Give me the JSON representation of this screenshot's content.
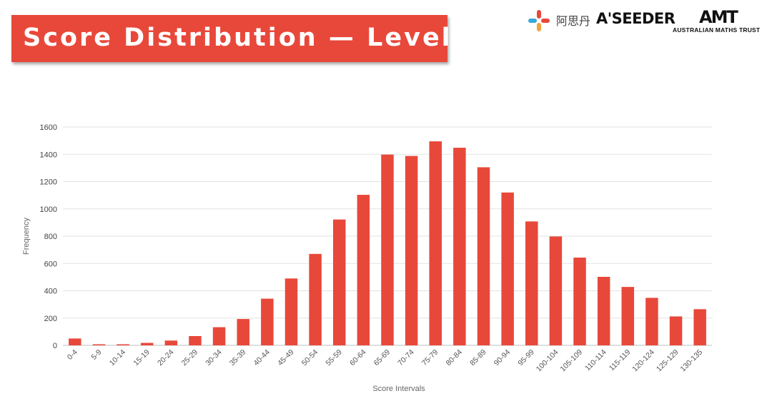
{
  "header": {
    "title": "Score Distribution — Level A",
    "title_bg_color": "#e8483a"
  },
  "logos": {
    "aseeder_cn": "阿思丹",
    "aseeder_en": "A'SEEDER",
    "amt_mark": "AMT",
    "amt_name": "AUSTRALIAN MATHS TRUST"
  },
  "chart_data": {
    "type": "bar",
    "title": "",
    "xlabel": "Score Intervals",
    "ylabel": "Frequency",
    "ylim": [
      0,
      1600
    ],
    "yticks": [
      0,
      200,
      400,
      600,
      800,
      1000,
      1200,
      1400,
      1600
    ],
    "grid": true,
    "bar_color": "#e8483a",
    "categories": [
      "0-4",
      "5-9",
      "10-14",
      "15-19",
      "20-24",
      "25-29",
      "30-34",
      "35-39",
      "40-44",
      "45-49",
      "50-54",
      "55-59",
      "60-64",
      "65-69",
      "70-74",
      "75-79",
      "80-84",
      "85-89",
      "90-94",
      "95-99",
      "100-104",
      "105-109",
      "110-114",
      "115-119",
      "120-124",
      "125-129",
      "130-135"
    ],
    "values": [
      50,
      3,
      3,
      18,
      35,
      68,
      133,
      193,
      342,
      490,
      670,
      922,
      1103,
      1398,
      1388,
      1495,
      1448,
      1305,
      1120,
      908,
      798,
      643,
      502,
      428,
      348,
      212,
      265
    ]
  }
}
